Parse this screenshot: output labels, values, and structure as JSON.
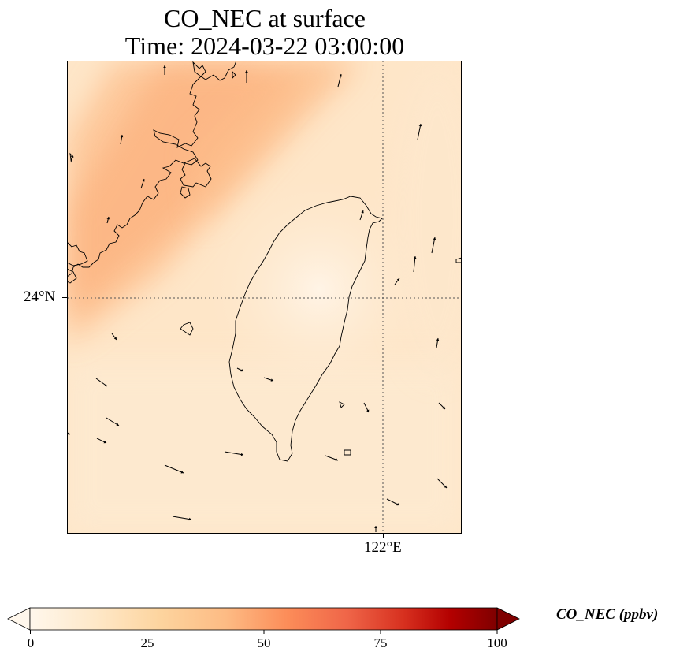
{
  "title": {
    "line1": "CO_NEC at surface",
    "line2": "Time: 2024-03-22 03:00:00"
  },
  "map": {
    "lat_label": "24°N",
    "lon_label": "122°E",
    "extent": {
      "lon": [
        119.0,
        122.75
      ],
      "lat": [
        21.75,
        26.25
      ]
    },
    "gridline_lat": 24.0,
    "gridline_lon": 122.0,
    "field": "CO_NEC",
    "field_level": "surface",
    "wind_vectors": true,
    "coastline_color": "#000000"
  },
  "colorbar": {
    "unit_label": "CO_NEC (ppbv)",
    "ticks": [
      "0",
      "25",
      "50",
      "75",
      "100"
    ],
    "range": [
      0,
      100
    ],
    "extend": "both",
    "colormap": "OrRd",
    "colors": [
      "#fff7ec",
      "#fee8c8",
      "#fdd49e",
      "#fdbb84",
      "#fc8d59",
      "#ef6548",
      "#d7301f",
      "#b30000",
      "#7f0000"
    ]
  }
}
